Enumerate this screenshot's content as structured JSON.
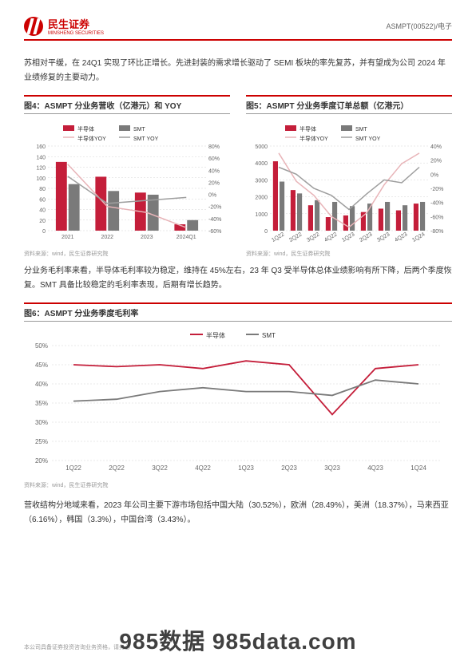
{
  "header": {
    "logo_cn": "民生证券",
    "logo_en": "MINSHENG SECURITIES",
    "right": "ASMPT(00522)/电子"
  },
  "para1": "苏相对平缓，在 24Q1 实现了环比正增长。先进封装的需求增长驱动了 SEMI 板块的率先复苏，并有望成为公司 2024 年业绩修复的主要动力。",
  "chart4": {
    "title": "图4：ASMPT 分业务营收（亿港元）和 YOY",
    "source": "资料来源：wind，民生证券研究院",
    "legend": {
      "s1": "半导体",
      "s2": "SMT",
      "s3": "半导体YOY",
      "s4": "SMT YOY"
    },
    "categories": [
      "2021",
      "2022",
      "2023",
      "2024Q1"
    ],
    "semi_bars": [
      130,
      102,
      72,
      12
    ],
    "smt_bars": [
      88,
      75,
      68,
      20
    ],
    "semi_yoy": [
      50,
      -20,
      -30,
      -55
    ],
    "smt_yoy": [
      30,
      -15,
      -10,
      -5
    ],
    "yleft": {
      "min": 0,
      "max": 160,
      "step": 20
    },
    "yright": {
      "min": -60,
      "max": 80,
      "step": 20
    },
    "colors": {
      "semi": "#c41e3a",
      "smt": "#7a7a7a",
      "semi_line": "#e8b4b8",
      "smt_line": "#9e9e9e",
      "grid": "#d5d5d5",
      "axis": "#666"
    }
  },
  "chart5": {
    "title": "图5：ASMPT 分业务季度订单总额（亿港元）",
    "source": "资料来源：wind，民生证券研究院",
    "legend": {
      "s1": "半导体",
      "s2": "SMT",
      "s3": "半导体YOY",
      "s4": "SMT YOY"
    },
    "categories": [
      "1Q22",
      "2Q22",
      "3Q22",
      "4Q22",
      "1Q23",
      "2Q23",
      "3Q23",
      "4Q23",
      "1Q24"
    ],
    "semi_bars": [
      4100,
      2400,
      1500,
      800,
      900,
      1100,
      1300,
      1200,
      1600
    ],
    "smt_bars": [
      2900,
      2200,
      1800,
      1700,
      1450,
      1600,
      1700,
      1500,
      1700
    ],
    "semi_yoy": [
      30,
      -10,
      -30,
      -60,
      -75,
      -55,
      -15,
      15,
      30
    ],
    "smt_yoy": [
      10,
      0,
      -20,
      -30,
      -50,
      -28,
      -8,
      -12,
      10
    ],
    "yleft": {
      "min": 0,
      "max": 5000,
      "step": 1000
    },
    "yright": {
      "min": -80,
      "max": 40,
      "step": 20
    },
    "colors": {
      "semi": "#c41e3a",
      "smt": "#7a7a7a",
      "semi_line": "#e8b4b8",
      "smt_line": "#9e9e9e",
      "grid": "#d5d5d5",
      "axis": "#666"
    }
  },
  "para2": "分业务毛利率来看，半导体毛利率较为稳定，维持在 45%左右，23 年 Q3 受半导体总体业绩影响有所下降，后两个季度恢复。SMT 具备比较稳定的毛利率表现，后期有增长趋势。",
  "chart6": {
    "title": "图6：ASMPT 分业务季度毛利率",
    "source": "资料来源：wind，民生证券研究院",
    "legend": {
      "s1": "半导体",
      "s2": "SMT"
    },
    "categories": [
      "1Q22",
      "2Q22",
      "3Q22",
      "4Q22",
      "1Q23",
      "2Q23",
      "3Q23",
      "4Q23",
      "1Q24"
    ],
    "semi_line": [
      45,
      44.5,
      45,
      44,
      46,
      45,
      32,
      44,
      45
    ],
    "smt_line": [
      35.5,
      36,
      38,
      39,
      38,
      38,
      37,
      41,
      40
    ],
    "y": {
      "min": 20,
      "max": 50,
      "step": 5
    },
    "colors": {
      "semi_line": "#c41e3a",
      "smt_line": "#7a7a7a",
      "grid": "#d5d5d5",
      "axis": "#666"
    }
  },
  "para3": "营收结构分地域来看，2023 年公司主要下游市场包括中国大陆（30.52%），欧洲（28.49%），美洲（18.37%），马来西亚（6.16%），韩国（3.3%），中国台湾（3.43%）。",
  "footer": "本公司具备证券投资咨询业务资格，请务必",
  "watermark": "985数据 985data.com"
}
